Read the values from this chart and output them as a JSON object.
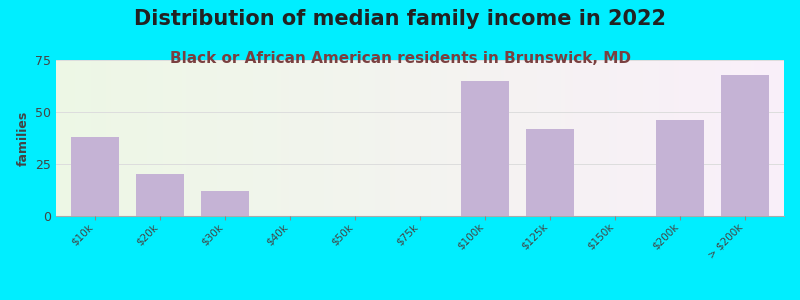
{
  "title": "Distribution of median family income in 2022",
  "subtitle": "Black or African American residents in Brunswick, MD",
  "categories": [
    "$10k",
    "$20k",
    "$30k",
    "$40k",
    "$50k",
    "$75k",
    "$100k",
    "$125k",
    "$150k",
    "$200k",
    "> $200k"
  ],
  "values": [
    38,
    20,
    12,
    0,
    0,
    0,
    65,
    42,
    0,
    46,
    68
  ],
  "bar_color": "#c5b3d5",
  "background_outer": "#00eeff",
  "ylabel": "families",
  "ylim": [
    0,
    75
  ],
  "yticks": [
    0,
    25,
    50,
    75
  ],
  "title_fontsize": 15,
  "subtitle_fontsize": 11,
  "title_color": "#222222",
  "subtitle_color": "#7a4040",
  "tick_label_color": "#444444",
  "grid_color": "#dddddd"
}
